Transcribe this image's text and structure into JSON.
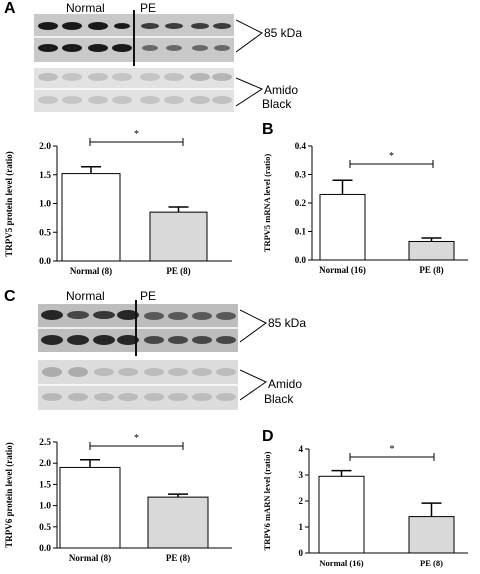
{
  "panels": {
    "a": "A",
    "b": "B",
    "c": "C",
    "d": "D"
  },
  "blots": [
    {
      "group_left": "Normal",
      "group_right": "PE",
      "kda_label": "85 kDa",
      "amido_line1": "Amido",
      "amido_line2": "Black"
    },
    {
      "group_left": "Normal",
      "group_right": "PE",
      "kda_label": "85 kDa",
      "amido_line1": "Amido",
      "amido_line2": "Black"
    }
  ],
  "chart_data": [
    {
      "type": "bar",
      "panel": "A",
      "categories": [
        "Normal (8)",
        "PE (8)"
      ],
      "values": [
        1.52,
        0.85
      ],
      "errors": [
        0.12,
        0.09
      ],
      "colors": [
        "#ffffff",
        "#d9d9d9"
      ],
      "ylabel": "TRPV5 protein level (ratio)",
      "ylim": [
        0,
        2.0
      ],
      "yticks": [
        "0.0",
        "0.5",
        "1.0",
        "1.5",
        "2.0"
      ],
      "significance": "*",
      "grid": false
    },
    {
      "type": "bar",
      "panel": "B",
      "categories": [
        "Normal (16)",
        "PE (8)"
      ],
      "values": [
        0.23,
        0.065
      ],
      "errors": [
        0.05,
        0.012
      ],
      "colors": [
        "#ffffff",
        "#d9d9d9"
      ],
      "ylabel": "TRPV5 mRNA level (ratio)",
      "ylim": [
        0,
        0.4
      ],
      "yticks": [
        "0.0",
        "0.1",
        "0.2",
        "0.3",
        "0.4"
      ],
      "significance": "*",
      "grid": false
    },
    {
      "type": "bar",
      "panel": "C",
      "categories": [
        "Normal (8)",
        "PE (8)"
      ],
      "values": [
        1.9,
        1.2
      ],
      "errors": [
        0.18,
        0.07
      ],
      "colors": [
        "#ffffff",
        "#d9d9d9"
      ],
      "ylabel": "TRPV6 protein level (ratio)",
      "ylim": [
        0,
        2.5
      ],
      "yticks": [
        "0.0",
        "0.5",
        "1.0",
        "1.5",
        "2.0",
        "2.5"
      ],
      "significance": "*",
      "grid": false
    },
    {
      "type": "bar",
      "panel": "D",
      "categories": [
        "Normal (16)",
        "PE (8)"
      ],
      "values": [
        2.95,
        1.4
      ],
      "errors": [
        0.22,
        0.52
      ],
      "colors": [
        "#ffffff",
        "#d9d9d9"
      ],
      "ylabel": "TRPV6 mARN level (ratio)",
      "ylim": [
        0,
        4
      ],
      "yticks": [
        "0",
        "1",
        "2",
        "3",
        "4"
      ],
      "significance": "*",
      "grid": false
    }
  ]
}
